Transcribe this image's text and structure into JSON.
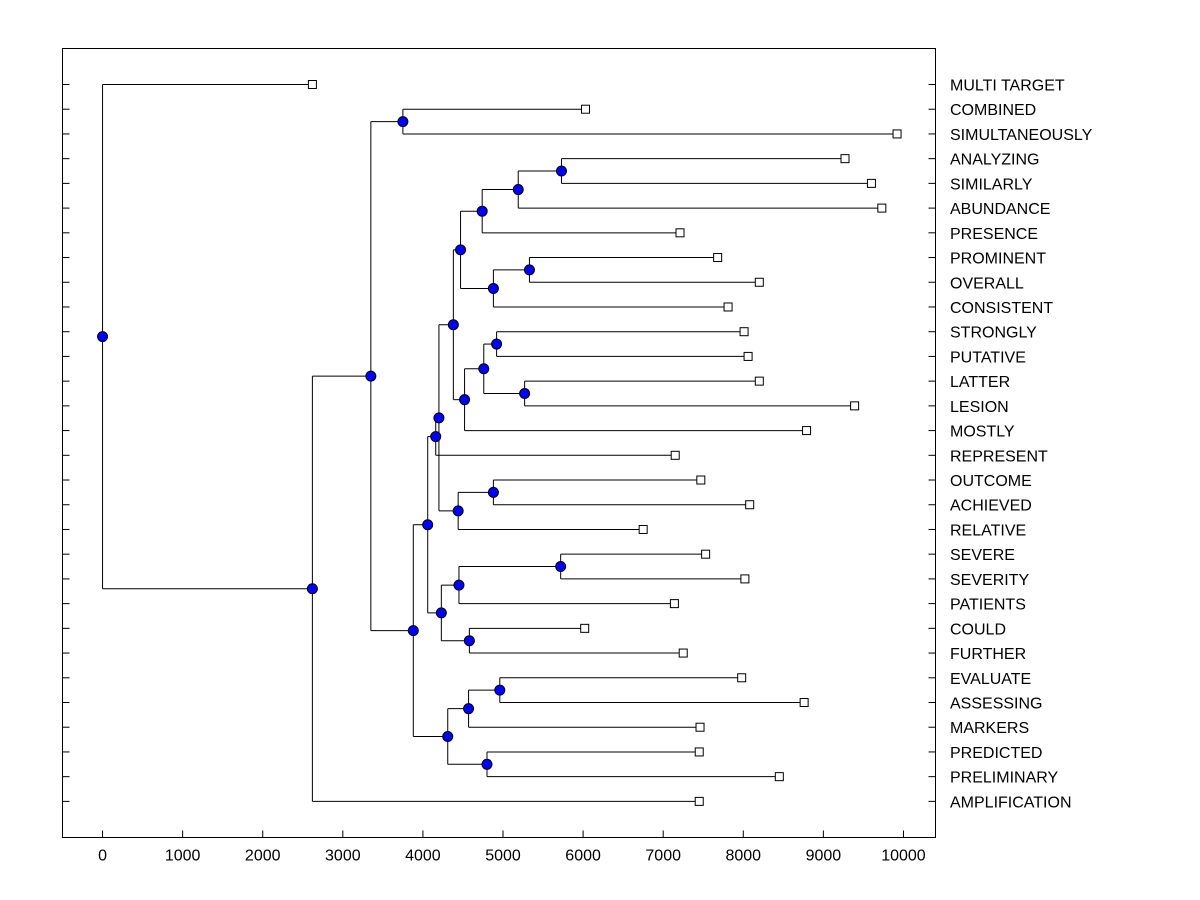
{
  "chart_data": {
    "type": "dendrogram",
    "orientation": "horizontal",
    "x_axis": {
      "min": -500,
      "max": 10400,
      "ticks": [
        0,
        1000,
        2000,
        3000,
        4000,
        5000,
        6000,
        7000,
        8000,
        9000,
        10000
      ],
      "tick_labels": [
        "0",
        "1000",
        "2000",
        "3000",
        "4000",
        "5000",
        "6000",
        "7000",
        "8000",
        "9000",
        "10000"
      ]
    },
    "leaves": [
      {
        "label": "MULTI TARGET",
        "x": 2620
      },
      {
        "label": "COMBINED",
        "x": 6030
      },
      {
        "label": "SIMULTANEOUSLY",
        "x": 9920
      },
      {
        "label": "ANALYZING",
        "x": 9270
      },
      {
        "label": "SIMILARLY",
        "x": 9600
      },
      {
        "label": "ABUNDANCE",
        "x": 9730
      },
      {
        "label": "PRESENCE",
        "x": 7210
      },
      {
        "label": "PROMINENT",
        "x": 7680
      },
      {
        "label": "OVERALL",
        "x": 8200
      },
      {
        "label": "CONSISTENT",
        "x": 7810
      },
      {
        "label": "STRONGLY",
        "x": 8010
      },
      {
        "label": "PUTATIVE",
        "x": 8060
      },
      {
        "label": "LATTER",
        "x": 8200
      },
      {
        "label": "LESION",
        "x": 9390
      },
      {
        "label": "MOSTLY",
        "x": 8790
      },
      {
        "label": "REPRESENT",
        "x": 7150
      },
      {
        "label": "OUTCOME",
        "x": 7470
      },
      {
        "label": "ACHIEVED",
        "x": 8080
      },
      {
        "label": "RELATIVE",
        "x": 6750
      },
      {
        "label": "SEVERE",
        "x": 7530
      },
      {
        "label": "SEVERITY",
        "x": 8020
      },
      {
        "label": "PATIENTS",
        "x": 7140
      },
      {
        "label": "COULD",
        "x": 6020
      },
      {
        "label": "FURTHER",
        "x": 7250
      },
      {
        "label": "EVALUATE",
        "x": 7980
      },
      {
        "label": "ASSESSING",
        "x": 8760
      },
      {
        "label": "MARKERS",
        "x": 7460
      },
      {
        "label": "PREDICTED",
        "x": 7450
      },
      {
        "label": "PRELIMINARY",
        "x": 8450
      },
      {
        "label": "AMPLIFICATION",
        "x": 7450
      }
    ],
    "merges": [
      {
        "id": "m1",
        "x": 3750,
        "children": [
          "L1",
          "L2"
        ]
      },
      {
        "id": "m2",
        "x": 5730,
        "children": [
          "L3",
          "L4"
        ]
      },
      {
        "id": "m3",
        "x": 5190,
        "children": [
          "m2",
          "L5"
        ]
      },
      {
        "id": "m4",
        "x": 4740,
        "children": [
          "m3",
          "L6"
        ]
      },
      {
        "id": "m5",
        "x": 5330,
        "children": [
          "L7",
          "L8"
        ]
      },
      {
        "id": "m6",
        "x": 4880,
        "children": [
          "m5",
          "L9"
        ]
      },
      {
        "id": "m7",
        "x": 4470,
        "children": [
          "m4",
          "m6"
        ]
      },
      {
        "id": "m8",
        "x": 4920,
        "children": [
          "L10",
          "L11"
        ]
      },
      {
        "id": "m9",
        "x": 5270,
        "children": [
          "L12",
          "L13"
        ]
      },
      {
        "id": "m10",
        "x": 4760,
        "children": [
          "m8",
          "m9"
        ]
      },
      {
        "id": "m11",
        "x": 4520,
        "children": [
          "m10",
          "L14"
        ]
      },
      {
        "id": "m12",
        "x": 4380,
        "children": [
          "m7",
          "m11"
        ]
      },
      {
        "id": "m13",
        "x": 4880,
        "children": [
          "L16",
          "L17"
        ]
      },
      {
        "id": "m14",
        "x": 4440,
        "children": [
          "m13",
          "L18"
        ]
      },
      {
        "id": "m15",
        "x": 4200,
        "children": [
          "m12",
          "m14"
        ]
      },
      {
        "id": "m16",
        "x": 4160,
        "children": [
          "m15",
          "L15"
        ]
      },
      {
        "id": "m17",
        "x": 5720,
        "children": [
          "L19",
          "L20"
        ]
      },
      {
        "id": "m18",
        "x": 4450,
        "children": [
          "m17",
          "L21"
        ]
      },
      {
        "id": "m19",
        "x": 4580,
        "children": [
          "L22",
          "L23"
        ]
      },
      {
        "id": "m20",
        "x": 4230,
        "children": [
          "m18",
          "m19"
        ]
      },
      {
        "id": "m21",
        "x": 4060,
        "children": [
          "m16",
          "m20"
        ]
      },
      {
        "id": "m22",
        "x": 4960,
        "children": [
          "L24",
          "L25"
        ]
      },
      {
        "id": "m23",
        "x": 4570,
        "children": [
          "m22",
          "L26"
        ]
      },
      {
        "id": "m24",
        "x": 4800,
        "children": [
          "L27",
          "L28"
        ]
      },
      {
        "id": "m25",
        "x": 4310,
        "children": [
          "m23",
          "m24"
        ]
      },
      {
        "id": "m26",
        "x": 3880,
        "children": [
          "m21",
          "m25"
        ]
      },
      {
        "id": "m27",
        "x": 3350,
        "children": [
          "m1",
          "m26"
        ]
      },
      {
        "id": "m28",
        "x": 2620,
        "children": [
          "m27",
          "L29"
        ]
      },
      {
        "id": "m29",
        "x": 0,
        "children": [
          "L0",
          "m28"
        ]
      }
    ],
    "colors": {
      "node_fill": "#0000ff",
      "leaf_fill": "#ffffff",
      "line": "#000000"
    }
  }
}
